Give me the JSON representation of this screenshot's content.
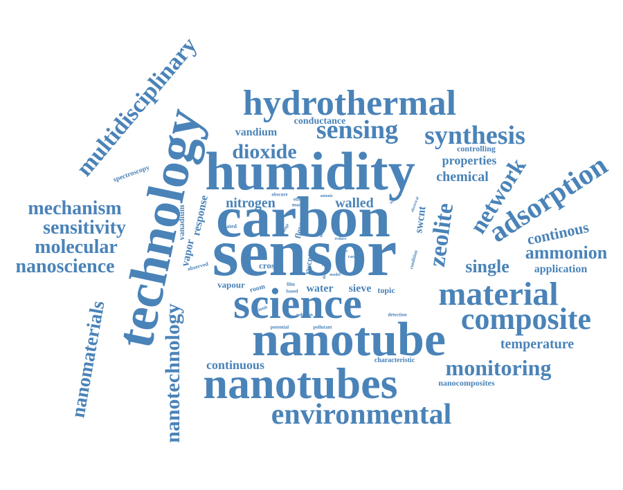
{
  "color": "#4a83b8",
  "words": [
    {
      "text": "sensor"
    },
    {
      "text": "carbon"
    },
    {
      "text": "humidity"
    },
    {
      "text": "technology"
    },
    {
      "text": "nanotube"
    },
    {
      "text": "nanotubes"
    },
    {
      "text": "science"
    },
    {
      "text": "material"
    },
    {
      "text": "hydrothermal"
    },
    {
      "text": "composite"
    },
    {
      "text": "environmental"
    },
    {
      "text": "adsorption"
    },
    {
      "text": "sensing"
    },
    {
      "text": "synthesis"
    },
    {
      "text": "multidisciplinary"
    },
    {
      "text": "nanotechnology"
    },
    {
      "text": "nanomaterials"
    },
    {
      "text": "network"
    },
    {
      "text": "zeolite"
    },
    {
      "text": "mechanism"
    },
    {
      "text": "sensitivity"
    },
    {
      "text": "molecular"
    },
    {
      "text": "nanoscience"
    },
    {
      "text": "monitoring"
    },
    {
      "text": "dioxide"
    },
    {
      "text": "nitrogen"
    },
    {
      "text": "walled"
    },
    {
      "text": "single"
    },
    {
      "text": "ammonion"
    },
    {
      "text": "continous"
    },
    {
      "text": "temperature"
    },
    {
      "text": "chemical"
    },
    {
      "text": "properties"
    },
    {
      "text": "vandium"
    },
    {
      "text": "conductance"
    },
    {
      "text": "continuous"
    },
    {
      "text": "controlling"
    },
    {
      "text": "application"
    },
    {
      "text": "water"
    },
    {
      "text": "sieve"
    },
    {
      "text": "vapour"
    },
    {
      "text": "vapor"
    },
    {
      "text": "response"
    },
    {
      "text": "vanadium"
    },
    {
      "text": "swcnt"
    },
    {
      "text": "swcnts"
    },
    {
      "text": "flow"
    },
    {
      "text": "cross"
    },
    {
      "text": "room"
    },
    {
      "text": "topic"
    },
    {
      "text": "spectroscopy"
    },
    {
      "text": "characteristic"
    },
    {
      "text": "nanocomposites"
    },
    {
      "text": "observed"
    },
    {
      "text": "related"
    },
    {
      "text": "obscure"
    },
    {
      "text": "effect"
    },
    {
      "text": "made"
    },
    {
      "text": "anionic"
    },
    {
      "text": "method"
    },
    {
      "text": "selective"
    },
    {
      "text": "electrical"
    },
    {
      "text": "change"
    },
    {
      "text": "layer"
    },
    {
      "text": "level"
    },
    {
      "text": "range"
    },
    {
      "text": "reduce"
    },
    {
      "text": "model"
    },
    {
      "text": "clcb"
    },
    {
      "text": "device"
    },
    {
      "text": "recovery"
    },
    {
      "text": "condition"
    },
    {
      "text": "cationic"
    },
    {
      "text": "film"
    },
    {
      "text": "based"
    },
    {
      "text": "solution"
    },
    {
      "text": "detection"
    },
    {
      "text": "potential"
    },
    {
      "text": "pollutant"
    }
  ]
}
